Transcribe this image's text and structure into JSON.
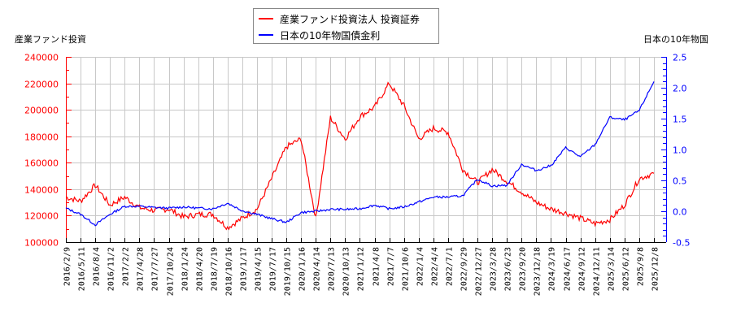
{
  "chart_data": {
    "type": "line",
    "title": "",
    "legend": {
      "position": "top-center",
      "entries": [
        {
          "label": "産業ファンド投資法人 投資証券",
          "color": "#ff0000"
        },
        {
          "label": "日本の10年物国債金利",
          "color": "#0000ff"
        }
      ]
    },
    "ylabel_left": "産業ファンド投資",
    "ylabel_right": "日本の10年物国",
    "ylim_left": [
      100000,
      240000
    ],
    "ylim_right": [
      -0.5,
      2.5
    ],
    "yticks_left": [
      "100000",
      "120000",
      "140000",
      "160000",
      "180000",
      "200000",
      "220000",
      "240000"
    ],
    "yticks_right": [
      "-0.5",
      "0.0",
      "0.5",
      "1.0",
      "1.5",
      "2.0",
      "2.5"
    ],
    "grid": true,
    "x": [
      "2016/2/9",
      "2016/5/11",
      "2016/8/4",
      "2016/11/2",
      "2017/2/2",
      "2017/4/28",
      "2017/7/27",
      "2017/10/24",
      "2018/1/24",
      "2018/4/20",
      "2018/7/19",
      "2018/10/16",
      "2019/1/17",
      "2019/4/15",
      "2019/7/17",
      "2019/10/15",
      "2020/1/16",
      "2020/4/14",
      "2020/7/13",
      "2020/10/13",
      "2021/1/12",
      "2021/4/8",
      "2021/7/7",
      "2021/10/6",
      "2022/1/4",
      "2022/4/4",
      "2022/7/1",
      "2022/9/29",
      "2022/12/27",
      "2023/3/28",
      "2023/6/23",
      "2023/9/20",
      "2023/12/18",
      "2024/3/19",
      "2024/6/17",
      "2024/9/12",
      "2024/12/11",
      "2025/3/14",
      "2025/6/12",
      "2025/9/8",
      "2025/12/8"
    ],
    "series": [
      {
        "name": "産業ファンド投資法人 投資証券",
        "axis": "left",
        "color": "#ff0000",
        "values": [
          134000,
          131000,
          143000,
          128000,
          134000,
          126000,
          124000,
          125000,
          119000,
          121000,
          121000,
          111000,
          118000,
          125000,
          148000,
          172000,
          178000,
          118000,
          194000,
          178000,
          195000,
          202000,
          220000,
          203000,
          178000,
          186000,
          183000,
          155000,
          145000,
          155000,
          146000,
          138000,
          130000,
          125000,
          122000,
          118000,
          114000,
          117000,
          128000,
          148000,
          152000
        ]
      },
      {
        "name": "日本の10年物国債金利",
        "axis": "right",
        "color": "#0000ff",
        "values": [
          0.05,
          -0.05,
          -0.22,
          -0.05,
          0.08,
          0.08,
          0.06,
          0.05,
          0.07,
          0.05,
          0.04,
          0.13,
          0.01,
          -0.05,
          -0.12,
          -0.18,
          -0.02,
          0.0,
          0.03,
          0.03,
          0.04,
          0.1,
          0.04,
          0.07,
          0.15,
          0.23,
          0.23,
          0.25,
          0.52,
          0.41,
          0.42,
          0.76,
          0.66,
          0.74,
          1.03,
          0.88,
          1.08,
          1.52,
          1.48,
          1.63,
          2.1
        ]
      }
    ]
  }
}
